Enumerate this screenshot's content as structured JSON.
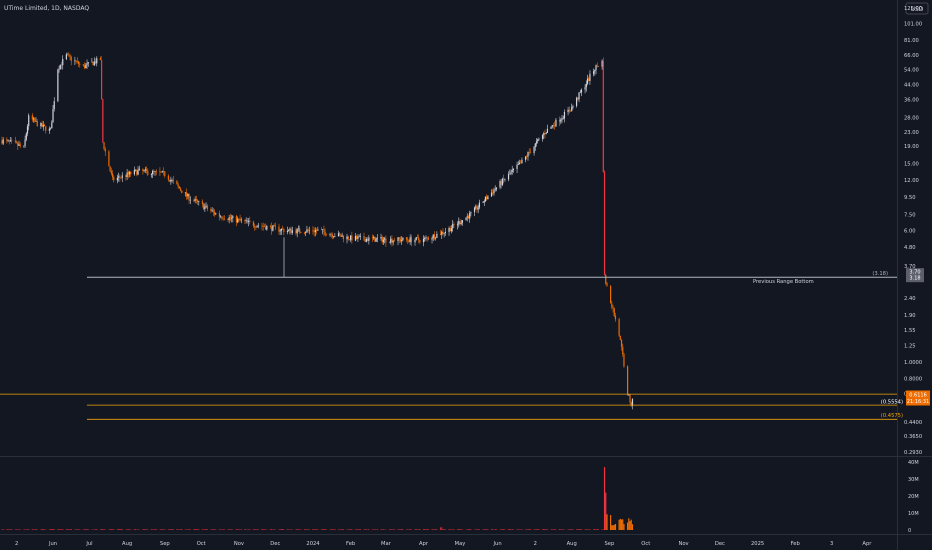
{
  "header": {
    "title": "UTime Limited, 1D, NASDAQ"
  },
  "price_axis": {
    "currency": "USD",
    "ticks": [
      "125.00",
      "101.00",
      "81.00",
      "66.00",
      "54.00",
      "44.00",
      "36.00",
      "28.00",
      "23.00",
      "19.00",
      "15.00",
      "12.00",
      "9.50",
      "7.50",
      "6.00",
      "4.80",
      "3.70",
      "2.40",
      "1.90",
      "1.55",
      "1.25",
      "1.0000",
      "0.8000",
      "0.6500",
      "0.4400",
      "0.3650",
      "0.2930"
    ]
  },
  "time_axis": {
    "ticks": [
      "2",
      "Jun",
      "Jul",
      "Aug",
      "Sep",
      "Oct",
      "Nov",
      "Dec",
      "2024",
      "Feb",
      "Mar",
      "Apr",
      "May",
      "Jun",
      "2",
      "Aug",
      "Sep",
      "Oct",
      "Nov",
      "Dec",
      "2025",
      "Feb",
      "3",
      "Apr"
    ]
  },
  "volume_axis": {
    "ticks": [
      "40M",
      "30M",
      "20M",
      "10M",
      "0"
    ]
  },
  "colors": {
    "background": "#131722",
    "up": "#d1d4dc",
    "down": "#ef6c00",
    "crash": "#f23645",
    "level_line": "#f0a30a",
    "range_line": "#b2b5be"
  },
  "levels": {
    "previous_range_bottom": {
      "value": 3.18,
      "label": "Previous Range Bottom",
      "left_tag": "(3.18)",
      "axis_tags": [
        "3.70",
        "3.18"
      ]
    },
    "support_upper": {
      "value": 0.5554,
      "left_tag": "(0.5554)"
    },
    "support_lower": {
      "value": 0.4575,
      "left_tag": "(0.4575)"
    },
    "top_line": {
      "value": 0.645
    },
    "last_price": {
      "value": 0.6116,
      "tag": "0.6116",
      "countdown": "21:16:31"
    }
  },
  "chart_data": {
    "type": "candlestick",
    "title": "UTime Limited, 1D, NASDAQ",
    "y_scale": "log",
    "ylim": [
      0.293,
      125
    ],
    "x_range": [
      "2023-04-20",
      "2025-04-20"
    ],
    "price_anchors": [
      {
        "date": "2023-04-20",
        "price": 20.5
      },
      {
        "date": "2023-05-01",
        "price": 19.5
      },
      {
        "date": "2023-05-08",
        "price": 18.5
      },
      {
        "date": "2023-05-12",
        "price": 28.0
      },
      {
        "date": "2023-05-22",
        "price": 25.0
      },
      {
        "date": "2023-05-30",
        "price": 23.5
      },
      {
        "date": "2023-06-05",
        "price": 55.0
      },
      {
        "date": "2023-06-12",
        "price": 65.0
      },
      {
        "date": "2023-06-26",
        "price": 56.0
      },
      {
        "date": "2023-07-10",
        "price": 62.0
      },
      {
        "date": "2023-07-12",
        "price": 20.0
      },
      {
        "date": "2023-07-20",
        "price": 12.0
      },
      {
        "date": "2023-08-10",
        "price": 13.5
      },
      {
        "date": "2023-09-01",
        "price": 13.0
      },
      {
        "date": "2023-09-20",
        "price": 9.5
      },
      {
        "date": "2023-10-15",
        "price": 7.4
      },
      {
        "date": "2023-11-15",
        "price": 6.5
      },
      {
        "date": "2023-12-10",
        "price": 6.0
      },
      {
        "date": "2024-01-05",
        "price": 6.0
      },
      {
        "date": "2024-02-01",
        "price": 5.4
      },
      {
        "date": "2024-03-01",
        "price": 5.3
      },
      {
        "date": "2024-04-01",
        "price": 5.3
      },
      {
        "date": "2024-04-20",
        "price": 6.0
      },
      {
        "date": "2024-05-10",
        "price": 7.5
      },
      {
        "date": "2024-06-01",
        "price": 11.0
      },
      {
        "date": "2024-06-20",
        "price": 15.0
      },
      {
        "date": "2024-07-10",
        "price": 23.0
      },
      {
        "date": "2024-08-01",
        "price": 32.0
      },
      {
        "date": "2024-08-20",
        "price": 55.0
      },
      {
        "date": "2024-08-26",
        "price": 60.0
      },
      {
        "date": "2024-08-28",
        "price": 3.2
      },
      {
        "date": "2024-09-02",
        "price": 2.3
      },
      {
        "date": "2024-09-08",
        "price": 1.6
      },
      {
        "date": "2024-09-12",
        "price": 1.1
      },
      {
        "date": "2024-09-16",
        "price": 0.66
      },
      {
        "date": "2024-09-19",
        "price": 0.55
      },
      {
        "date": "2024-09-20",
        "price": 0.61
      }
    ],
    "volume_spike": {
      "date": "2024-08-28",
      "value_millions": 37
    },
    "levels": [
      3.18,
      0.5554,
      0.4575
    ]
  }
}
